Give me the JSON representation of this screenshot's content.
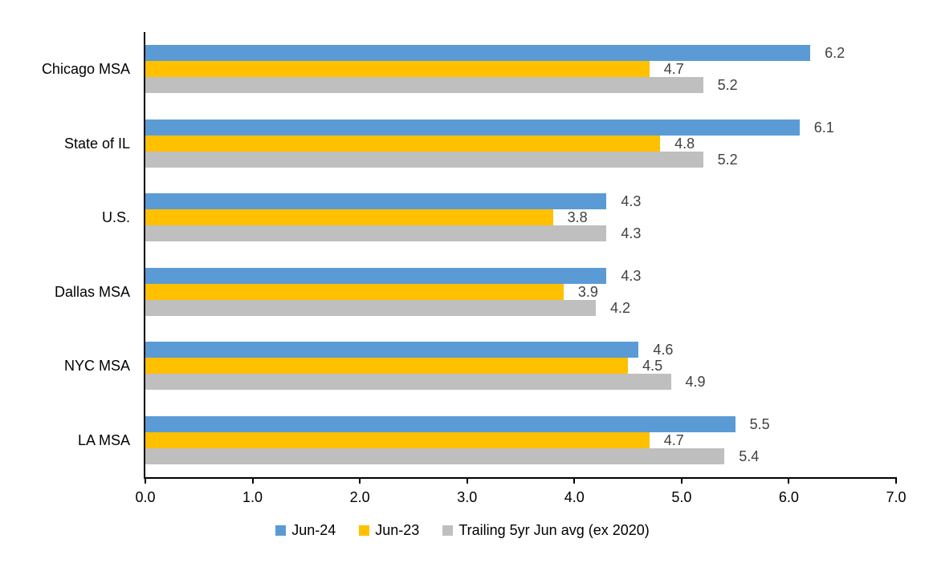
{
  "chart_data": {
    "type": "bar",
    "orientation": "horizontal",
    "title": "",
    "categories": [
      "Chicago MSA",
      "State of IL",
      "U.S.",
      "Dallas MSA",
      "NYC MSA",
      "LA MSA"
    ],
    "series": [
      {
        "name": "Jun-24",
        "color": "#5B9BD5",
        "values": [
          6.2,
          6.1,
          4.3,
          4.3,
          4.6,
          5.5
        ]
      },
      {
        "name": "Jun-23",
        "color": "#FFC000",
        "values": [
          4.7,
          4.8,
          3.8,
          3.9,
          4.5,
          4.7
        ]
      },
      {
        "name": "Trailing 5yr Jun avg (ex 2020)",
        "color": "#BFBFBF",
        "values": [
          5.2,
          5.2,
          4.3,
          4.2,
          4.9,
          5.4
        ]
      }
    ],
    "data_labels": {
      "visible": true,
      "decimals": 1,
      "color": "#404040"
    },
    "x_axis": {
      "min": 0.0,
      "max": 7.0,
      "tick_interval": 1.0,
      "tick_labels": [
        "0.0",
        "1.0",
        "2.0",
        "3.0",
        "4.0",
        "5.0",
        "6.0",
        "7.0"
      ],
      "color": "#000000"
    },
    "grid": false,
    "legend_position": "bottom",
    "background_color": "#ffffff"
  }
}
